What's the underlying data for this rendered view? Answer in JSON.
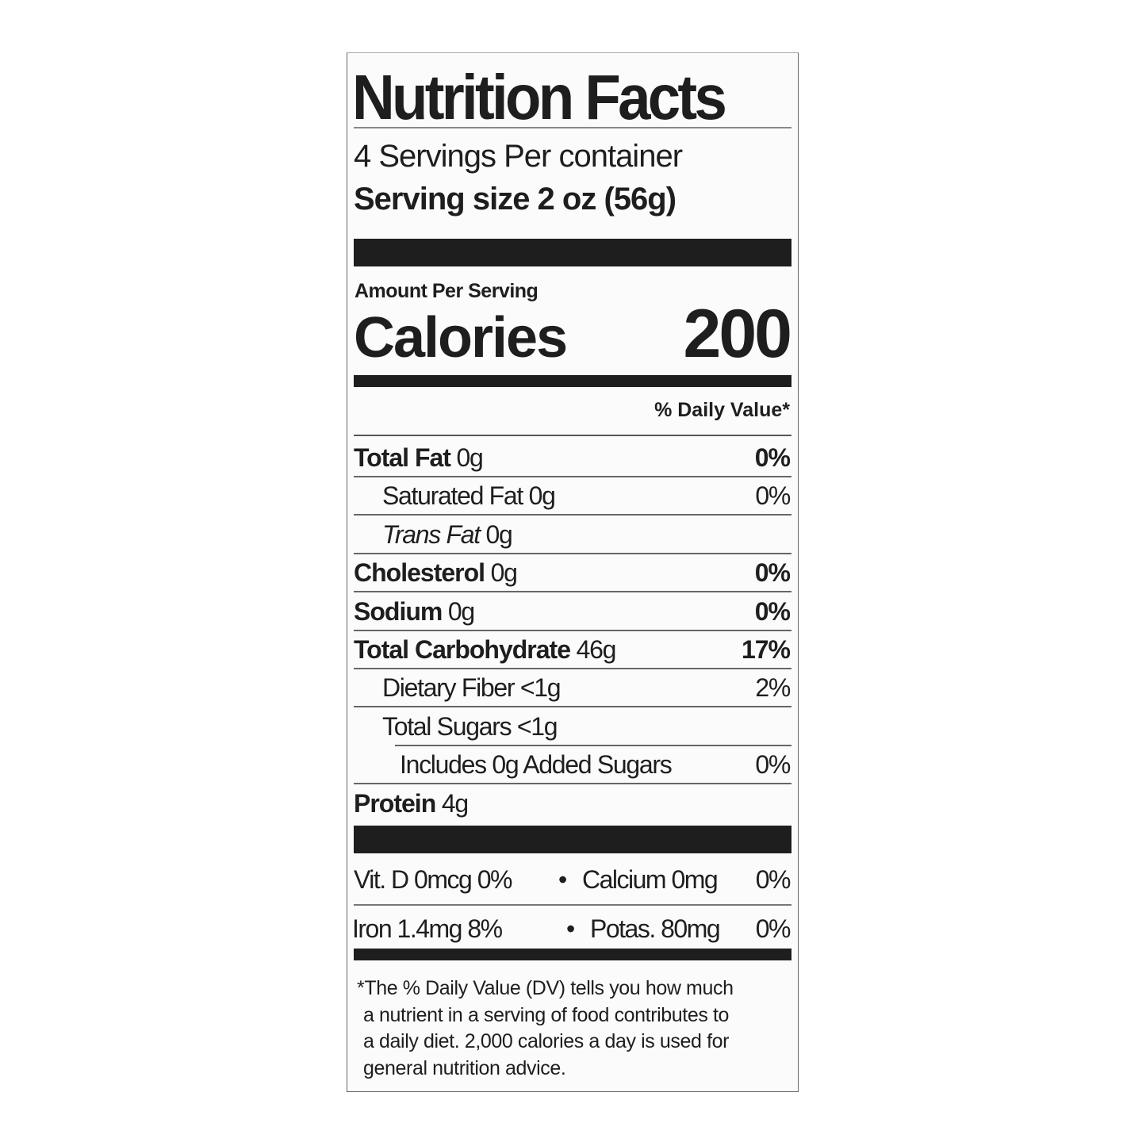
{
  "title": "Nutrition Facts",
  "servings_per_container": "4 Servings Per container",
  "serving_size": "Serving size 2 oz (56g)",
  "amount_per_serving": "Amount Per Serving",
  "calories_label": "Calories",
  "calories_value": "200",
  "daily_value_header": "% Daily Value*",
  "nutrients": [
    {
      "name": "Total Fat",
      "amount": "0g",
      "dv": "0%",
      "bold": true,
      "indent": 0
    },
    {
      "name": "Saturated Fat",
      "amount": "0g",
      "dv": "0%",
      "bold": false,
      "indent": 1
    },
    {
      "name": "Trans Fat",
      "amount": "0g",
      "dv": "",
      "bold": false,
      "indent": 1,
      "italic": true
    },
    {
      "name": "Cholesterol",
      "amount": "0g",
      "dv": "0%",
      "bold": true,
      "indent": 0
    },
    {
      "name": "Sodium",
      "amount": "0g",
      "dv": "0%",
      "bold": true,
      "indent": 0
    },
    {
      "name": "Total Carbohydrate",
      "amount": "46g",
      "dv": "17%",
      "bold": true,
      "indent": 0
    },
    {
      "name": "Dietary Fiber",
      "amount": "<1g",
      "dv": "2%",
      "bold": false,
      "indent": 1
    },
    {
      "name": "Total Sugars",
      "amount": "<1g",
      "dv": "",
      "bold": false,
      "indent": 1
    },
    {
      "name": "Includes 0g Added Sugars",
      "amount": "",
      "dv": "0%",
      "bold": false,
      "indent": 2
    },
    {
      "name": "Protein",
      "amount": "4g",
      "dv": "",
      "bold": true,
      "indent": 0
    }
  ],
  "vitamins": [
    {
      "left": "Vit. D 0mcg 0%",
      "right": "Calcium 0mg",
      "right_dv": "0%"
    },
    {
      "left": "Iron 1.4mg 8%",
      "right": "Potas. 80mg",
      "right_dv": "0%"
    }
  ],
  "bullet": "•",
  "footnote": [
    "*The % Daily Value (DV) tells you how much",
    "a nutrient in a serving of food contributes to",
    "a daily diet. 2,000 calories a day is used for",
    "general nutrition advice."
  ]
}
